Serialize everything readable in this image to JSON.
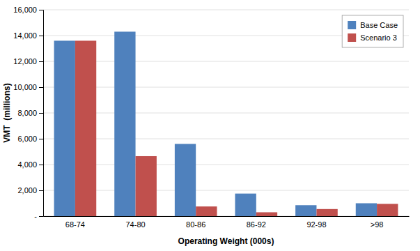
{
  "chart_data": {
    "type": "bar",
    "categories": [
      "68-74",
      "74-80",
      "80-86",
      "86-92",
      "92-98",
      ">98"
    ],
    "series": [
      {
        "name": "Base Case",
        "color": "#4f81bd",
        "values": [
          13600,
          14300,
          5600,
          1750,
          850,
          1000
        ]
      },
      {
        "name": "Scenario 3",
        "color": "#c0504d",
        "values": [
          13600,
          4650,
          750,
          300,
          550,
          950
        ]
      }
    ],
    "xlabel": "Operating Weight (000s)",
    "ylabel": "VMT  (millions)",
    "ylim": [
      0,
      16000
    ],
    "yticks": [
      {
        "value": 0,
        "label": "-"
      },
      {
        "value": 2000,
        "label": "2,000"
      },
      {
        "value": 4000,
        "label": "4,000"
      },
      {
        "value": 6000,
        "label": "6,000"
      },
      {
        "value": 8000,
        "label": "8,000"
      },
      {
        "value": 10000,
        "label": "10,000"
      },
      {
        "value": 12000,
        "label": "12,000"
      },
      {
        "value": 14000,
        "label": "14,000"
      },
      {
        "value": 16000,
        "label": "16,000"
      }
    ],
    "grid": true,
    "legend": "upper right"
  }
}
